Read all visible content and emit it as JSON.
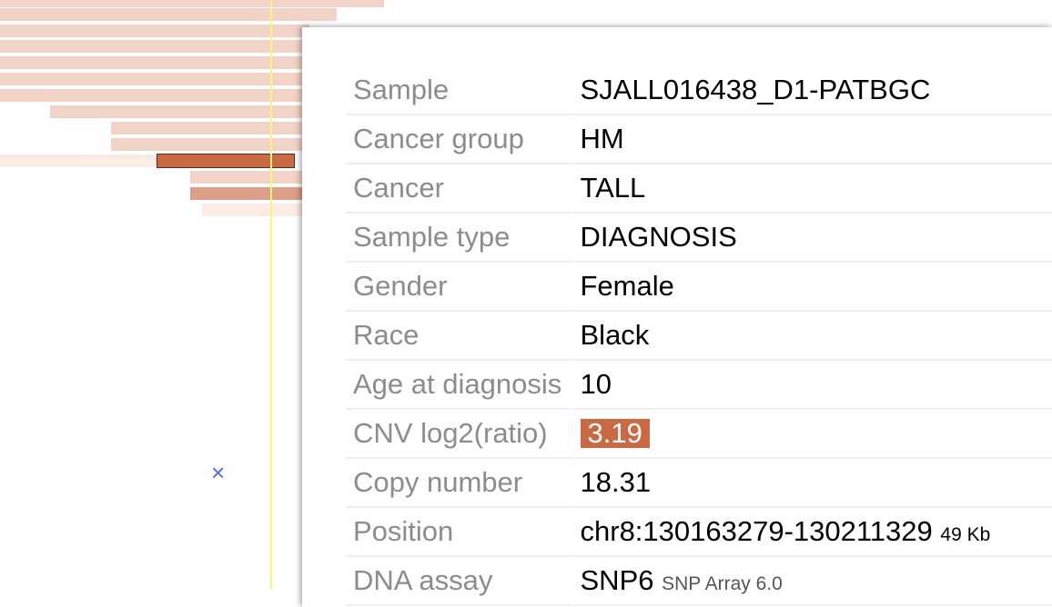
{
  "tooltip": {
    "rows": [
      {
        "label": "Sample",
        "value": "SJALL016438_D1-PATBGC"
      },
      {
        "label": "Cancer group",
        "value": "HM"
      },
      {
        "label": "Cancer",
        "value": "TALL"
      },
      {
        "label": "Sample type",
        "value": "DIAGNOSIS"
      },
      {
        "label": "Gender",
        "value": "Female"
      },
      {
        "label": "Race",
        "value": "Black"
      },
      {
        "label": "Age at diagnosis",
        "value": "10"
      },
      {
        "label": "CNV log2(ratio)",
        "value": "3.19",
        "badge_color": "#c96a45"
      },
      {
        "label": "Copy number",
        "value": "18.31"
      },
      {
        "label": "Position",
        "value": "chr8:130163279-130211329",
        "note": "49 Kb"
      },
      {
        "label": "DNA assay",
        "value": "SNP6",
        "note": "SNP Array 6.0"
      }
    ]
  },
  "close_icon": "close-icon",
  "colors": {
    "highlight": "#c96a45",
    "segment": "#f1d3c8",
    "cursor": "#fff37a",
    "close": "#4c6fe0"
  }
}
